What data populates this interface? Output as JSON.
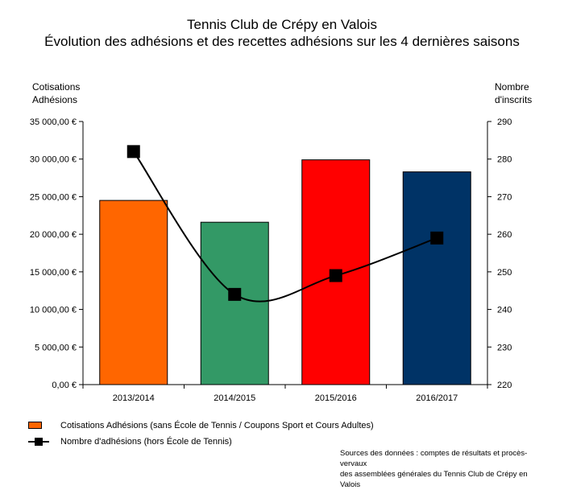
{
  "chart_data": {
    "type": "bar",
    "title": "Tennis Club de Crépy en Valois",
    "subtitle": "Évolution des adhésions et des recettes adhésions sur les 4 dernières saisons",
    "ylabel": [
      "Cotisations",
      "Adhésions"
    ],
    "y2label": [
      "Nombre",
      "d'inscrits"
    ],
    "categories": [
      "2013/2014",
      "2014/2015",
      "2015/2016",
      "2016/2017"
    ],
    "ylim": [
      0,
      35000
    ],
    "y_ticks": [
      0,
      5000,
      10000,
      15000,
      20000,
      25000,
      30000,
      35000
    ],
    "y_tick_labels": [
      "0,00 €",
      "5 000,00 €",
      "10 000,00 €",
      "15 000,00 €",
      "20 000,00 €",
      "25 000,00 €",
      "30 000,00 €",
      "35 000,00 €"
    ],
    "y2lim": [
      220,
      290
    ],
    "y2_ticks": [
      220,
      230,
      240,
      250,
      260,
      270,
      280,
      290
    ],
    "y2_tick_labels": [
      "220",
      "230",
      "240",
      "250",
      "260",
      "270",
      "280",
      "290"
    ],
    "series": [
      {
        "name": "Cotisations Adhésions (sans École de Tennis / Coupons Sport et Cours Adultes)",
        "type": "bar",
        "axis": "left",
        "values": [
          24500,
          21600,
          29900,
          28300
        ],
        "colors": [
          "#ff6600",
          "#339966",
          "#ff0000",
          "#003366"
        ]
      },
      {
        "name": "Nombre d'adhésions (hors École de Tennis)",
        "type": "line",
        "axis": "right",
        "values": [
          282,
          244,
          249,
          259
        ],
        "color": "#000000",
        "marker": "square"
      }
    ],
    "grid": false,
    "legend_position": "bottom-left"
  },
  "sources": [
    "Sources des données : comptes de résultats et procès-vervaux",
    "des assemblées générales du Tennis Club de Crépy en Valois"
  ]
}
